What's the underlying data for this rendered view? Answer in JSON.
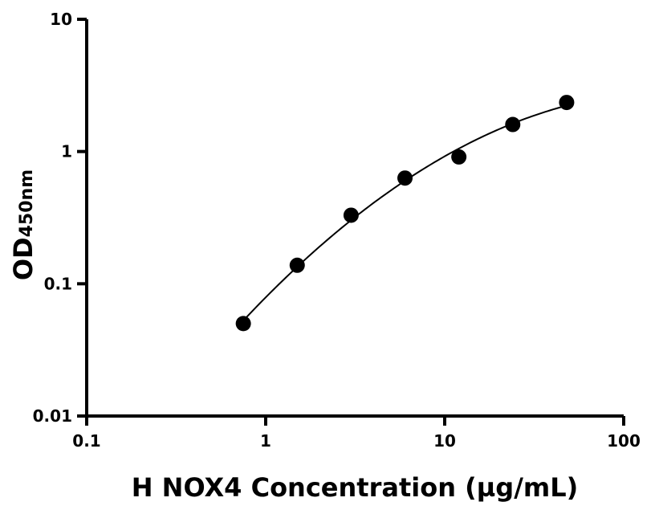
{
  "chart_data": {
    "type": "scatter",
    "title": "",
    "xlabel": "H NOX4 Concentration (µg/mL)",
    "ylabel_main": "OD",
    "ylabel_sub": "450nm",
    "x_scale": "log",
    "y_scale": "log",
    "xlim": [
      0.1,
      100
    ],
    "ylim": [
      0.01,
      10
    ],
    "x_ticks": [
      0.1,
      1,
      10,
      100
    ],
    "x_tick_labels": [
      "0.1",
      "1",
      "10",
      "100"
    ],
    "y_ticks": [
      0.01,
      0.1,
      1,
      10
    ],
    "y_tick_labels": [
      "0.01",
      "0.1",
      "1",
      "10"
    ],
    "grid": false,
    "legend": "none",
    "fit_curve": true,
    "series": [
      {
        "x": [
          0.75,
          1.5,
          3,
          6,
          12,
          24,
          48
        ],
        "y": [
          0.05,
          0.138,
          0.33,
          0.63,
          0.91,
          1.6,
          2.35
        ]
      }
    ],
    "colors": {
      "marker": "#000000",
      "line": "#000000",
      "axis": "#000000"
    }
  }
}
